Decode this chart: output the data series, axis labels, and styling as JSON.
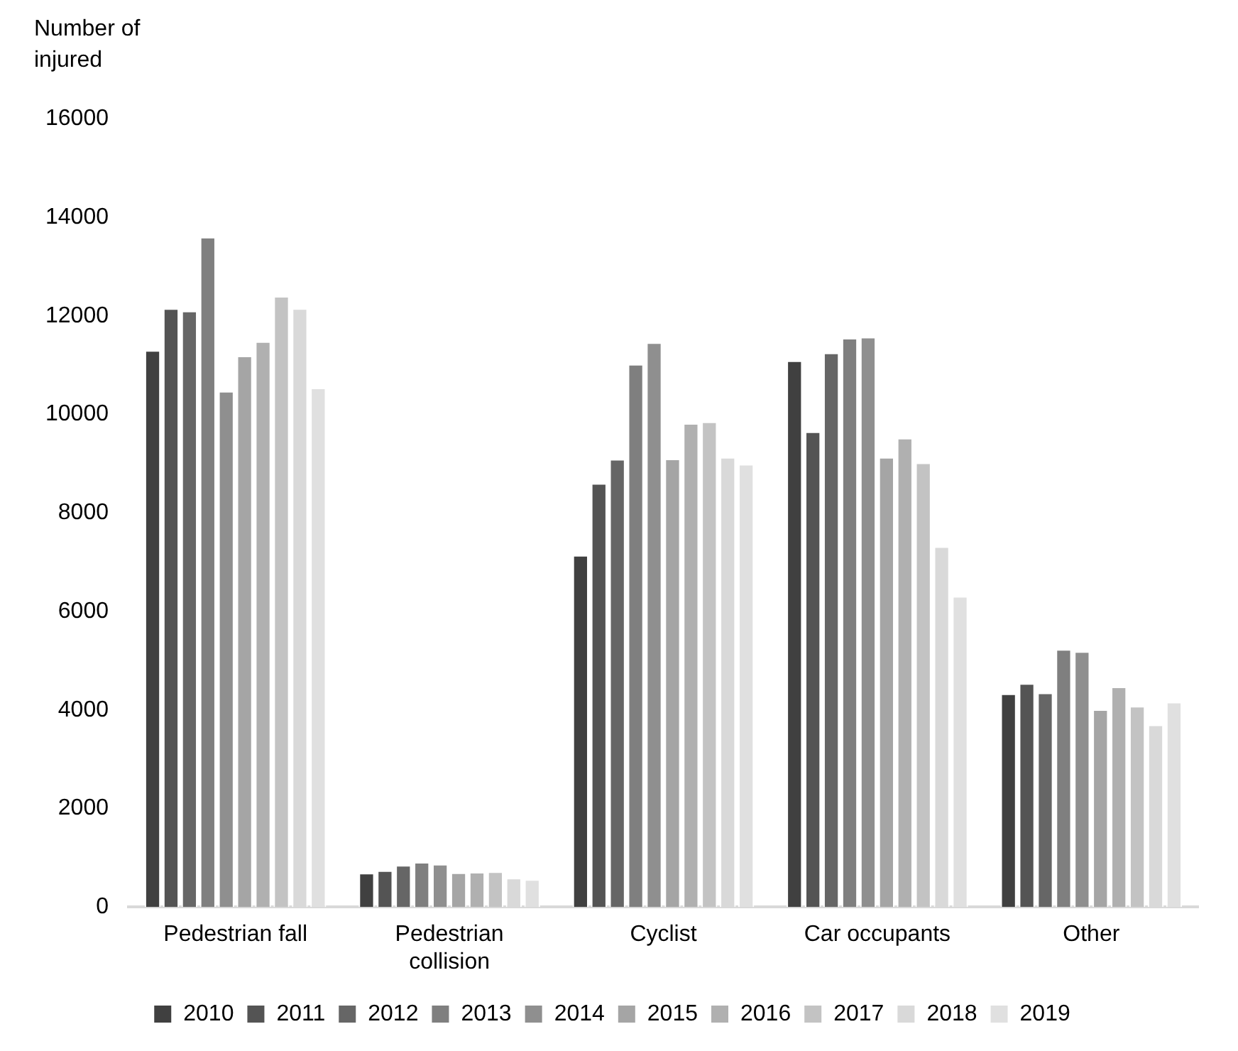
{
  "chart_data": {
    "type": "bar",
    "ylabel": "Number of injured",
    "categories": [
      "Pedestrian fall",
      "Pedestrian collision",
      "Cyclist",
      "Car occupants",
      "Other"
    ],
    "series": [
      {
        "name": "2010",
        "color": "#404040",
        "values": [
          11300,
          690,
          7140,
          11090,
          4330
        ]
      },
      {
        "name": "2011",
        "color": "#545454",
        "values": [
          12150,
          740,
          8600,
          9650,
          4540
        ]
      },
      {
        "name": "2012",
        "color": "#666666",
        "values": [
          12100,
          850,
          9090,
          11250,
          4350
        ]
      },
      {
        "name": "2013",
        "color": "#7f7f7f",
        "values": [
          13600,
          910,
          11020,
          11550,
          5230
        ]
      },
      {
        "name": "2014",
        "color": "#8f8f8f",
        "values": [
          10470,
          870,
          11460,
          11570,
          5190
        ]
      },
      {
        "name": "2015",
        "color": "#a5a5a5",
        "values": [
          11190,
          700,
          9100,
          9130,
          4010
        ]
      },
      {
        "name": "2016",
        "color": "#b0b0b0",
        "values": [
          11480,
          710,
          9820,
          9520,
          4470
        ]
      },
      {
        "name": "2017",
        "color": "#c3c3c3",
        "values": [
          12400,
          720,
          9850,
          9020,
          4080
        ]
      },
      {
        "name": "2018",
        "color": "#d9d9d9",
        "values": [
          12150,
          590,
          9130,
          7320,
          3700
        ]
      },
      {
        "name": "2019",
        "color": "#e0e0e0",
        "values": [
          10540,
          560,
          8990,
          6310,
          4160
        ]
      }
    ],
    "ylim": [
      0,
      16000
    ],
    "yticks": [
      0,
      2000,
      4000,
      6000,
      8000,
      10000,
      12000,
      14000,
      16000
    ],
    "grid": false,
    "legend": "bottom"
  }
}
